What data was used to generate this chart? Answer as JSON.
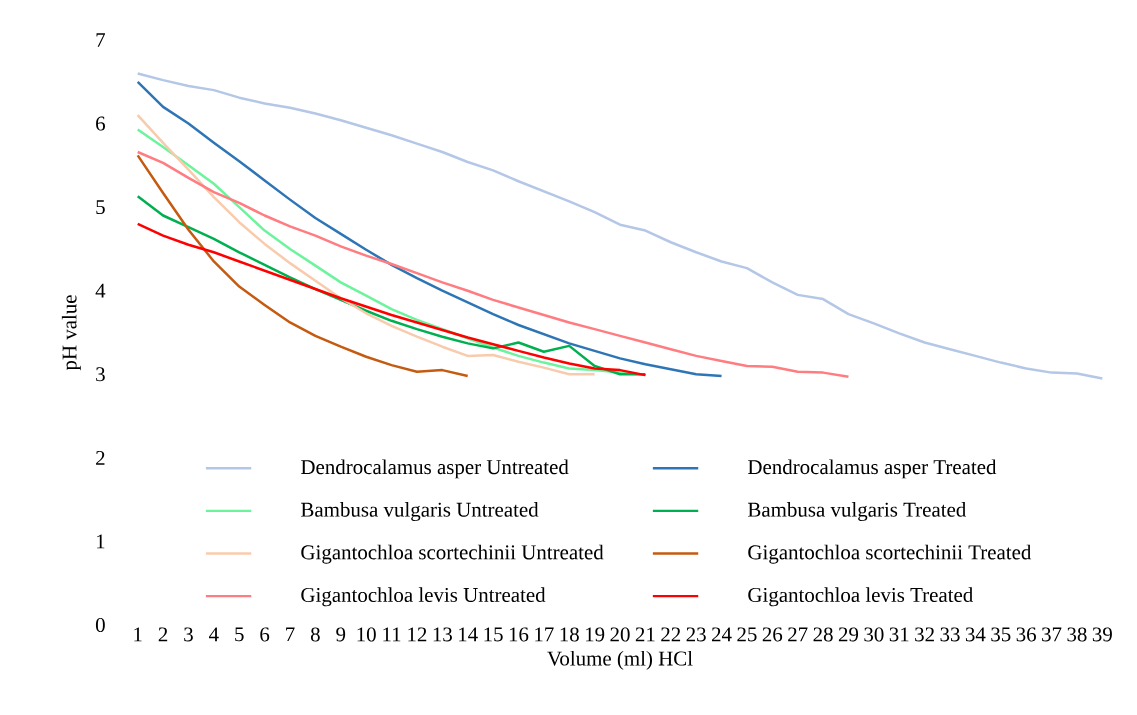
{
  "chart_data": {
    "type": "line",
    "xlabel": "Volume (ml) HCl",
    "ylabel": "pH value",
    "categories": [
      "1",
      "2",
      "3",
      "4",
      "5",
      "6",
      "7",
      "8",
      "9",
      "10",
      "11",
      "12",
      "13",
      "14",
      "15",
      "16",
      "17",
      "18",
      "19",
      "20",
      "21",
      "22",
      "23",
      "24",
      "25",
      "26",
      "27",
      "28",
      "29",
      "30",
      "31",
      "32",
      "33",
      "34",
      "35",
      "36",
      "37",
      "38",
      "39"
    ],
    "ylim": [
      0,
      7
    ],
    "yticks": [
      0,
      1,
      2,
      3,
      4,
      5,
      6,
      7
    ],
    "grid": false,
    "legend": "bottom",
    "marker": "none",
    "line_style": "solid",
    "series": [
      {
        "name": "Dendrocalamus asper Untreated",
        "color": "#b4c7e7",
        "values": [
          6.6,
          6.52,
          6.45,
          6.4,
          6.31,
          6.24,
          6.19,
          6.12,
          6.04,
          5.95,
          5.86,
          5.76,
          5.66,
          5.54,
          5.44,
          5.31,
          5.19,
          5.07,
          4.94,
          4.79,
          4.72,
          4.58,
          4.46,
          4.35,
          4.27,
          4.1,
          3.95,
          3.9,
          3.72,
          3.61,
          3.49,
          3.38,
          3.3,
          3.22,
          3.14,
          3.07,
          3.02,
          3.01,
          2.95
        ]
      },
      {
        "name": "Dendrocalamus asper Treated",
        "color": "#2e75b6",
        "values": [
          6.5,
          6.2,
          6.0,
          5.77,
          5.55,
          5.32,
          5.09,
          4.87,
          4.68,
          4.49,
          4.31,
          4.15,
          4.0,
          3.86,
          3.72,
          3.59,
          3.48,
          3.37,
          3.28,
          3.19,
          3.12,
          3.06,
          3.0,
          2.98,
          null,
          null,
          null,
          null,
          null,
          null,
          null,
          null,
          null,
          null,
          null,
          null,
          null,
          null,
          null
        ]
      },
      {
        "name": "Bambusa vulgaris Untreated",
        "color": "#6cf49d",
        "values": [
          5.93,
          5.72,
          5.5,
          5.28,
          5.0,
          4.72,
          4.5,
          4.3,
          4.1,
          3.94,
          3.78,
          3.65,
          3.54,
          3.43,
          3.32,
          3.22,
          3.14,
          3.07,
          3.05,
          3.02,
          2.99,
          null,
          null,
          null,
          null,
          null,
          null,
          null,
          null,
          null,
          null,
          null,
          null,
          null,
          null,
          null,
          null,
          null,
          null
        ]
      },
      {
        "name": "Bambusa vulgaris Treated",
        "color": "#00b050",
        "values": [
          5.13,
          4.9,
          4.76,
          4.62,
          4.46,
          4.31,
          4.16,
          4.02,
          3.89,
          3.76,
          3.64,
          3.54,
          3.45,
          3.37,
          3.31,
          3.38,
          3.27,
          3.34,
          3.1,
          3.0,
          3.0,
          null,
          null,
          null,
          null,
          null,
          null,
          null,
          null,
          null,
          null,
          null,
          null,
          null,
          null,
          null,
          null,
          null,
          null
        ]
      },
      {
        "name": "Gigantochloa scortechinii Untreated",
        "color": "#f8cbad",
        "values": [
          6.1,
          5.77,
          5.45,
          5.12,
          4.82,
          4.56,
          4.33,
          4.12,
          3.91,
          3.73,
          3.58,
          3.45,
          3.33,
          3.22,
          3.23,
          3.15,
          3.08,
          3.0,
          3.0,
          null,
          null,
          null,
          null,
          null,
          null,
          null,
          null,
          null,
          null,
          null,
          null,
          null,
          null,
          null,
          null,
          null,
          null,
          null,
          null
        ]
      },
      {
        "name": "Gigantochloa scortechinii Treated",
        "color": "#c55a11",
        "values": [
          5.62,
          5.17,
          4.73,
          4.35,
          4.05,
          3.83,
          3.62,
          3.46,
          3.33,
          3.21,
          3.11,
          3.03,
          3.05,
          2.98,
          null,
          null,
          null,
          null,
          null,
          null,
          null,
          null,
          null,
          null,
          null,
          null,
          null,
          null,
          null,
          null,
          null,
          null,
          null,
          null,
          null,
          null,
          null,
          null,
          null
        ]
      },
      {
        "name": "Gigantochloa levis Untreated",
        "color": "#ff7c80",
        "values": [
          5.66,
          5.53,
          5.35,
          5.18,
          5.05,
          4.9,
          4.77,
          4.66,
          4.53,
          4.42,
          4.32,
          4.21,
          4.1,
          4.0,
          3.89,
          3.8,
          3.71,
          3.62,
          3.54,
          3.46,
          3.38,
          3.3,
          3.22,
          3.16,
          3.1,
          3.09,
          3.03,
          3.02,
          2.97,
          null,
          null,
          null,
          null,
          null,
          null,
          null,
          null,
          null,
          null
        ]
      },
      {
        "name": "Gigantochloa levis Treated",
        "color": "#ff0000",
        "values": [
          4.8,
          4.66,
          4.55,
          4.46,
          4.35,
          4.24,
          4.13,
          4.02,
          3.91,
          3.81,
          3.71,
          3.62,
          3.53,
          3.44,
          3.36,
          3.28,
          3.2,
          3.13,
          3.07,
          3.05,
          2.99,
          null,
          null,
          null,
          null,
          null,
          null,
          null,
          null,
          null,
          null,
          null,
          null,
          null,
          null,
          null,
          null,
          null,
          null
        ]
      }
    ]
  }
}
